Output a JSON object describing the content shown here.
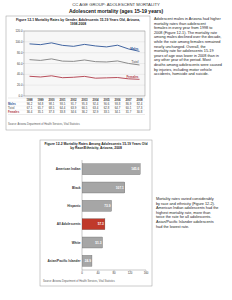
{
  "page": {
    "header": "CC AGE GROUP: ADOLESCENT MORTALITY",
    "title": "Adolescent mortality (ages 15-19 years)",
    "paragraphs": [
      "Adolescent males in Arizona had higher mortality rates than adolescent females in every year from 1998 to 2008 (Figure 12-1). The mortality rate among males declined over the decade, while the rate among females remained nearly unchanged. Overall, the mortality rate for adolescents 15-19 years of age was lower in 2008 than in any other year of the period. Most deaths among adolescents were caused by injuries, including motor vehicle accidents, homicide and suicide.",
      "Mortality rates varied considerably by race and ethnicity (Figure 12-2). American Indian adolescents had the highest mortality rate, more than twice the rate for all adolescents. Asian/Pacific Islander adolescents had the lowest rate."
    ]
  },
  "chart_data": [
    {
      "type": "line",
      "title": "Figure 12-1 Mortality Rates by Gender, Adolescents 15-19 Years Old, Arizona, 1998-2008",
      "categories": [
        "1998",
        "1999",
        "2000",
        "2001",
        "2002",
        "2003",
        "2004",
        "2005",
        "2006",
        "2007",
        "2008"
      ],
      "series": [
        {
          "name": "Males",
          "color": "#2e5597",
          "values": [
            96.2,
            94.8,
            98.1,
            93.5,
            91.7,
            95.3,
            92.4,
            90.6,
            93.8,
            86.9,
            82.4
          ]
        },
        {
          "name": "Total",
          "color": "#7f7f7f",
          "values": [
            67.1,
            65.7,
            68.5,
            64.4,
            63.9,
            66.5,
            63.4,
            62.8,
            64.7,
            60.1,
            57.3
          ]
        },
        {
          "name": "Females",
          "color": "#b03a48",
          "values": [
            36.4,
            35.1,
            37.3,
            33.8,
            34.6,
            36.2,
            32.9,
            33.5,
            34.1,
            31.7,
            30.8
          ]
        }
      ],
      "ylim": [
        0,
        120
      ],
      "yticks": [
        {
          "value": 0,
          "label": "0.0"
        },
        {
          "value": 20,
          "label": "20.0"
        },
        {
          "value": 40,
          "label": "40.0"
        },
        {
          "value": 60,
          "label": "60.0"
        },
        {
          "value": 80,
          "label": "80.0"
        },
        {
          "value": 100,
          "label": "100.0"
        },
        {
          "value": 120,
          "label": "120.0"
        }
      ],
      "grid": true,
      "source": "Source: Arizona Department of Health Services, Vital Statistics"
    },
    {
      "type": "bar",
      "orientation": "horizontal",
      "title": "Figure 12-2 Mortality Rates Among Adolescents 15-19 Years Old by Race/Ethnicity, Arizona, 2008",
      "categories": [
        "American Indian",
        "Black",
        "Hispanic",
        "All Adolescents",
        "White",
        "Asian/Pacific Islander"
      ],
      "values": [
        145.6,
        107.1,
        73.9,
        57.3,
        51.3,
        24.9
      ],
      "colors": [
        "#a6a6a6",
        "#a6a6a6",
        "#a6a6a6",
        "#c0392b",
        "#a6a6a6",
        "#a6a6a6"
      ],
      "data_labels": true,
      "xlim": [
        0,
        160
      ],
      "xticks": [
        0,
        40,
        80,
        120,
        160
      ],
      "source": "Source: Arizona Department of Health Services, Vital Statistics"
    }
  ]
}
